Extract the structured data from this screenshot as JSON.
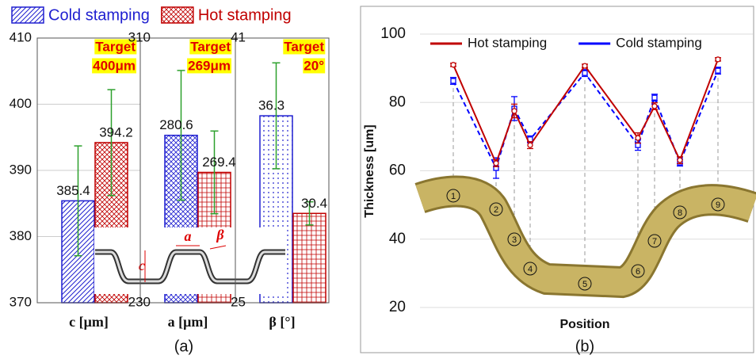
{
  "chart_data": [
    {
      "type": "bar",
      "legend_position": "top",
      "caption": "(a)",
      "xlabel": "c [μm]",
      "ylim": [
        370,
        410
      ],
      "yticks": [
        370,
        380,
        390,
        400,
        410
      ],
      "grid": true,
      "annotation": [
        "Target",
        "400μm"
      ],
      "inset_labels": [
        "c",
        "a",
        "β"
      ],
      "error_color": "#2ca02c",
      "series": [
        {
          "name": "Cold stamping",
          "color": "#1f1fd0",
          "values": [
            385.4
          ],
          "errors": [
            8.3
          ]
        },
        {
          "name": "Hot stamping",
          "color": "#c00000",
          "values": [
            394.2
          ],
          "errors": [
            8
          ]
        }
      ]
    },
    {
      "type": "bar",
      "xlabel": "a [μm]",
      "ylim": [
        230,
        310
      ],
      "yticks": [
        230,
        310
      ],
      "annotation": [
        "Target",
        "269μm"
      ],
      "error_color": "#2ca02c",
      "series": [
        {
          "color": "#1f1fd0",
          "values": [
            280.6
          ],
          "errors": [
            19.6
          ]
        },
        {
          "color": "#c00000",
          "values": [
            269.4
          ],
          "errors": [
            12.5
          ]
        }
      ]
    },
    {
      "type": "bar",
      "xlabel": "β [°]",
      "ylim": [
        25,
        41
      ],
      "yticks": [
        25,
        41
      ],
      "annotation": [
        "Target",
        "20°"
      ],
      "error_color": "#2ca02c",
      "series": [
        {
          "color": "#1f1fd0",
          "values": [
            36.3
          ],
          "errors": [
            3.2
          ]
        },
        {
          "color": "#c00000",
          "values": [
            30.4
          ],
          "errors": [
            0.7
          ]
        }
      ]
    },
    {
      "type": "line",
      "caption": "(b)",
      "xlabel": "Position",
      "ylabel": "Thickness [um]",
      "legend_position": "top",
      "grid": true,
      "categories": [
        "1",
        "2",
        "3",
        "4",
        "5",
        "6",
        "7",
        "8",
        "9"
      ],
      "ylim": [
        20,
        100
      ],
      "yticks": [
        20,
        40,
        60,
        80,
        100
      ],
      "series": [
        {
          "name": "Hot stamping",
          "color": "#c00000",
          "values": [
            91,
            62.2,
            77.5,
            67.5,
            90.7,
            69.6,
            78.9,
            63.1,
            92.6
          ],
          "errors": [
            0.5,
            1,
            2,
            1,
            0.5,
            1.5,
            1,
            1,
            0.5
          ]
        },
        {
          "name": "Cold stamping",
          "color": "#0000ff",
          "dashed": true,
          "values": [
            86.3,
            60.8,
            78.2,
            69.2,
            88.6,
            67.5,
            81.4,
            62.4,
            89.3
          ],
          "errors": [
            1,
            3,
            3.5,
            1,
            1,
            1.5,
            1,
            1,
            1
          ]
        }
      ]
    }
  ]
}
